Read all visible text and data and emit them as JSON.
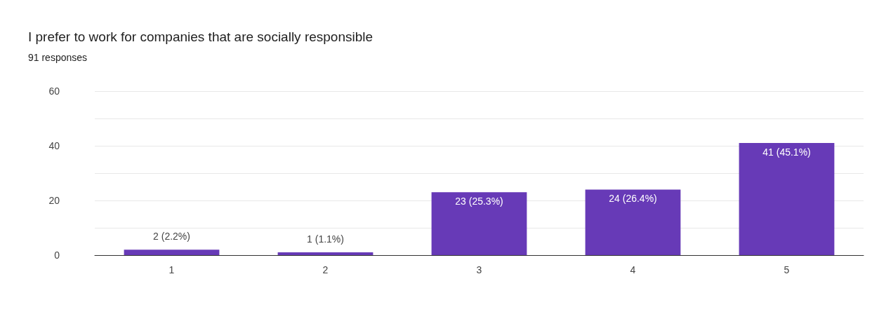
{
  "chart_data": {
    "type": "bar",
    "title": "I prefer to work for companies that are socially responsible",
    "subtitle": "91 responses",
    "categories": [
      "1",
      "2",
      "3",
      "4",
      "5"
    ],
    "values": [
      2,
      1,
      23,
      24,
      41
    ],
    "value_labels": [
      "2 (2.2%)",
      "1 (1.1%)",
      "23 (25.3%)",
      "24 (26.4%)",
      "41 (45.1%)"
    ],
    "color": "#673ab7",
    "ylim": [
      0,
      60
    ],
    "yticks": [
      0,
      {
        "value": 10,
        "label": null
      },
      20,
      {
        "value": 30,
        "label": null
      },
      40,
      {
        "value": 50,
        "label": null
      },
      60
    ],
    "grid": "y"
  }
}
